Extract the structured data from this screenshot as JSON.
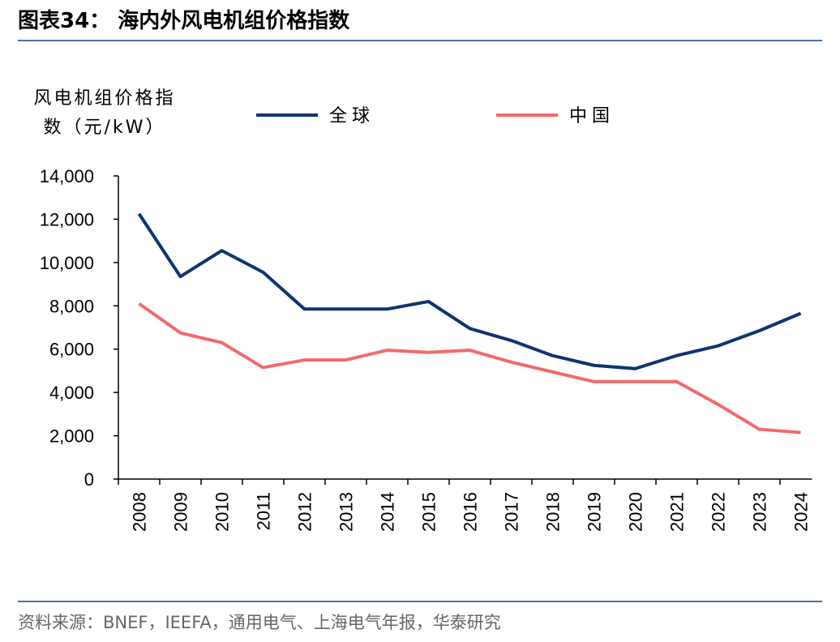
{
  "chart_data": {
    "type": "line",
    "title": "图表34：  海内外风电机组价格指数",
    "y_label": "风电机组价格指数（元/kW）",
    "source": "资料来源：BNEF，IEEFA，通用电气、上海电气年报，华泰研究",
    "categories": [
      "2008",
      "2009",
      "2010",
      "2011",
      "2012",
      "2013",
      "2014",
      "2015",
      "2016",
      "2017",
      "2018",
      "2019",
      "2020",
      "2021",
      "2022",
      "2023",
      "2024"
    ],
    "series": [
      {
        "name": "全球",
        "color": "#0d3570",
        "values": [
          12250,
          9350,
          10550,
          9550,
          7850,
          7850,
          7850,
          8200,
          6950,
          6400,
          5700,
          5250,
          5100,
          5700,
          6150,
          6850,
          7650
        ]
      },
      {
        "name": "中国",
        "color": "#f26a6a",
        "values": [
          8100,
          6750,
          6300,
          5150,
          5500,
          5500,
          5950,
          5850,
          5950,
          5400,
          4950,
          4500,
          4500,
          4500,
          3450,
          2300,
          2150
        ]
      }
    ],
    "ylim": [
      0,
      14000
    ],
    "yticks": [
      0,
      {
        "value": 2000,
        "label": "2,000"
      },
      {
        "value": 4000,
        "label": "4,000"
      },
      {
        "value": 6000,
        "label": "6,000"
      },
      {
        "value": 8000,
        "label": "8,000"
      },
      {
        "value": 10000,
        "label": "10,000"
      },
      {
        "value": 12000,
        "label": "12,000"
      },
      {
        "value": 14000,
        "label": "14,000"
      }
    ],
    "grid": false
  }
}
